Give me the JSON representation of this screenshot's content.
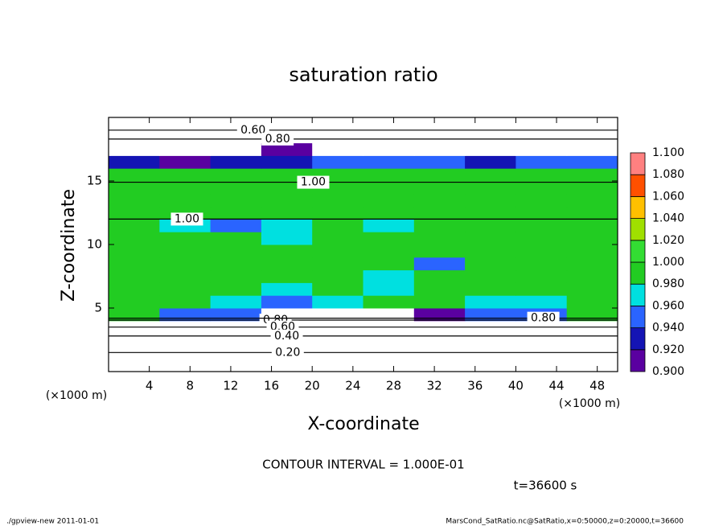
{
  "chart_data": {
    "type": "contour",
    "title": "saturation ratio",
    "x_label": "X-coordinate",
    "y_label": "Z-coordinate",
    "x_unit": "(×1000 m)",
    "y_unit": "(×1000 m)",
    "contour_interval_text": "CONTOUR INTERVAL = 1.000E-01",
    "time_text": "t=36600 s",
    "footer_left": "./gpview-new  2011-01-01",
    "footer_right": "MarsCond_SatRatio.nc@SatRatio,x=0:50000,z=0:20000,t=36600",
    "xlim": [
      0,
      50
    ],
    "ylim": [
      0,
      20
    ],
    "xticks": [
      4,
      8,
      12,
      16,
      20,
      24,
      28,
      32,
      36,
      40,
      44,
      48
    ],
    "yticks": [
      5,
      10,
      15
    ],
    "x": [
      2.5,
      7.5,
      12.5,
      17.5,
      22.5,
      27.5,
      32.5,
      37.5,
      42.5,
      47.5
    ],
    "z": [
      0.5,
      1.5,
      2.5,
      3.5,
      4.5,
      5.5,
      6.5,
      7.5,
      8.5,
      9.5,
      10.5,
      11.5,
      12.5,
      13.5,
      14.5,
      15.5,
      16.5,
      17.5,
      18.5,
      19.5
    ],
    "values": [
      [
        0.1,
        0.1,
        0.1,
        0.1,
        0.1,
        0.1,
        0.1,
        0.1,
        0.1,
        0.1
      ],
      [
        0.2,
        0.2,
        0.2,
        0.2,
        0.2,
        0.2,
        0.2,
        0.2,
        0.2,
        0.2
      ],
      [
        0.35,
        0.35,
        0.35,
        0.35,
        0.35,
        0.35,
        0.35,
        0.35,
        0.35,
        0.35
      ],
      [
        0.6,
        0.6,
        0.6,
        0.6,
        0.6,
        0.6,
        0.6,
        0.6,
        0.6,
        0.6
      ],
      [
        0.99,
        0.96,
        0.95,
        0.85,
        0.8,
        0.88,
        0.9,
        0.95,
        0.96,
        0.99
      ],
      [
        0.99,
        0.99,
        0.97,
        0.96,
        0.97,
        0.99,
        0.99,
        0.98,
        0.97,
        0.99
      ],
      [
        0.99,
        0.99,
        0.99,
        0.97,
        0.99,
        0.98,
        0.99,
        0.99,
        0.99,
        0.99
      ],
      [
        0.99,
        0.99,
        0.99,
        0.99,
        0.99,
        0.97,
        0.99,
        0.99,
        0.99,
        0.99
      ],
      [
        0.99,
        0.99,
        0.99,
        0.99,
        0.99,
        0.99,
        0.96,
        0.99,
        0.99,
        0.99
      ],
      [
        0.99,
        0.99,
        0.99,
        0.99,
        0.99,
        0.99,
        0.99,
        0.99,
        0.99,
        0.99
      ],
      [
        0.99,
        0.99,
        0.99,
        0.98,
        0.99,
        0.99,
        0.99,
        0.99,
        0.99,
        0.99
      ],
      [
        0.99,
        0.97,
        0.96,
        0.97,
        0.99,
        0.98,
        0.99,
        0.99,
        0.99,
        0.99
      ],
      [
        0.99,
        0.99,
        0.99,
        0.99,
        0.99,
        0.99,
        0.99,
        0.99,
        0.99,
        0.99
      ],
      [
        0.99,
        0.99,
        0.99,
        0.99,
        0.99,
        0.99,
        0.99,
        0.99,
        0.99,
        0.99
      ],
      [
        0.99,
        0.99,
        0.99,
        0.99,
        0.99,
        0.99,
        0.99,
        0.99,
        0.99,
        0.99
      ],
      [
        0.99,
        0.99,
        0.99,
        0.99,
        0.99,
        0.99,
        0.99,
        0.99,
        0.99,
        0.99
      ],
      [
        0.94,
        0.92,
        0.93,
        0.94,
        0.95,
        0.96,
        0.95,
        0.94,
        0.95,
        0.96
      ],
      [
        0.85,
        0.85,
        0.88,
        0.9,
        0.87,
        0.85,
        0.86,
        0.85,
        0.84,
        0.84
      ],
      [
        0.72,
        0.72,
        0.72,
        0.72,
        0.72,
        0.72,
        0.72,
        0.72,
        0.72,
        0.72
      ],
      [
        0.6,
        0.6,
        0.6,
        0.6,
        0.6,
        0.6,
        0.6,
        0.6,
        0.6,
        0.6
      ]
    ],
    "levels": [
      {
        "value": 0.9,
        "label": "0.900"
      },
      {
        "value": 0.92,
        "label": "0.920"
      },
      {
        "value": 0.94,
        "label": "0.940"
      },
      {
        "value": 0.96,
        "label": "0.960"
      },
      {
        "value": 0.98,
        "label": "0.980"
      },
      {
        "value": 1.0,
        "label": "1.000"
      },
      {
        "value": 1.02,
        "label": "1.020"
      },
      {
        "value": 1.04,
        "label": "1.040"
      },
      {
        "value": 1.06,
        "label": "1.060"
      },
      {
        "value": 1.08,
        "label": "1.080"
      },
      {
        "value": 1.1,
        "label": "1.100"
      }
    ],
    "colors": [
      "#5a00a0",
      "#1414b4",
      "#2a64ff",
      "#00e0e0",
      "#22cc22",
      "#33dd33",
      "#a0e000",
      "#ffc000",
      "#ff5000",
      "#ff8080"
    ],
    "contours": [
      {
        "value": 0.6,
        "label": "0.60",
        "x": 14.2,
        "z": 19.0
      },
      {
        "value": 0.8,
        "label": "0.80",
        "x": 16.6,
        "z": 18.3
      },
      {
        "value": 1.0,
        "label": "1.00",
        "x": 20.1,
        "z": 14.9
      },
      {
        "value": 1.0,
        "label": "1.00",
        "x": 7.7,
        "z": 12.0
      },
      {
        "value": 0.8,
        "label": "0.80",
        "x": 16.4,
        "z": 4.05
      },
      {
        "value": 0.6,
        "label": "0.60",
        "x": 17.1,
        "z": 3.5
      },
      {
        "value": 0.4,
        "label": "0.40",
        "x": 17.5,
        "z": 2.8
      },
      {
        "value": 0.2,
        "label": "0.20",
        "x": 17.6,
        "z": 1.5
      },
      {
        "value": 0.8,
        "label": "0.80",
        "x": 42.7,
        "z": 4.2
      }
    ]
  }
}
